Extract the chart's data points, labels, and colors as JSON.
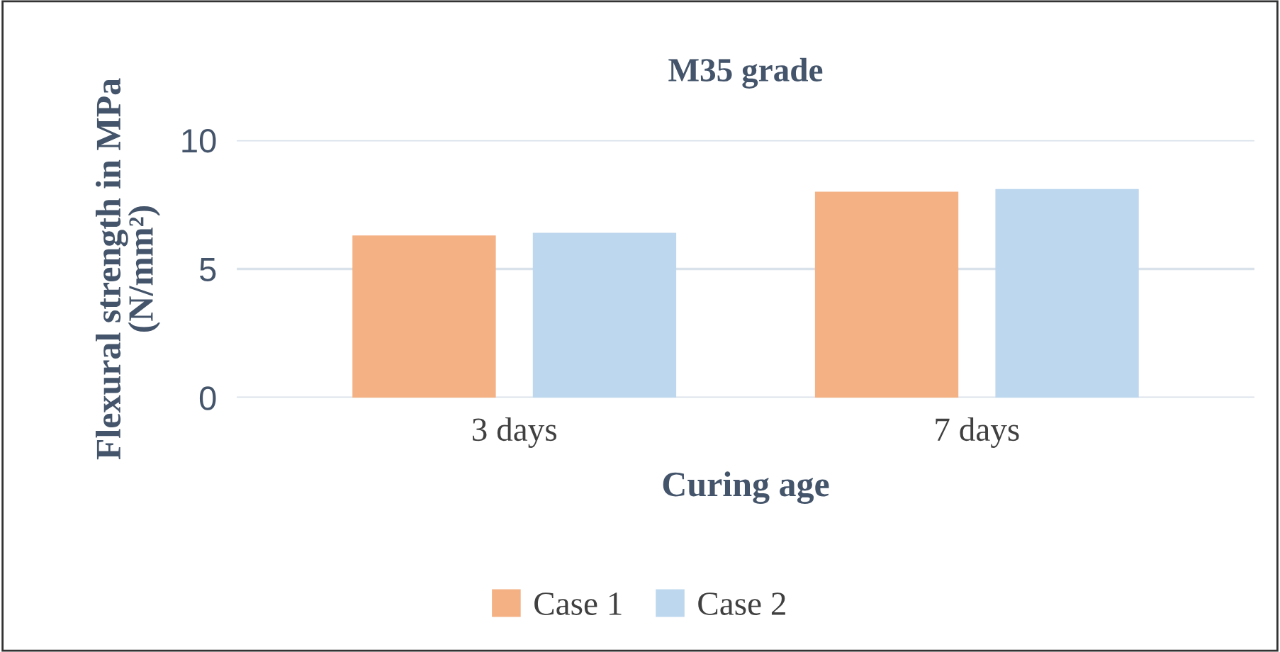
{
  "chart_data": {
    "type": "bar",
    "title": "M35 grade",
    "xlabel": "Curing age",
    "ylabel": "Flexural strength in MPa\n(N/mm²)",
    "categories": [
      "3 days",
      "7 days"
    ],
    "series": [
      {
        "name": "Case 1",
        "color": "#f4b183",
        "values": [
          6.3,
          8.0
        ]
      },
      {
        "name": "Case 2",
        "color": "#bdd7ee",
        "values": [
          6.4,
          8.1
        ]
      }
    ],
    "ylim": [
      0,
      10
    ],
    "yticks": [
      0,
      5,
      10
    ],
    "grid": "y",
    "legend": "bottom"
  }
}
